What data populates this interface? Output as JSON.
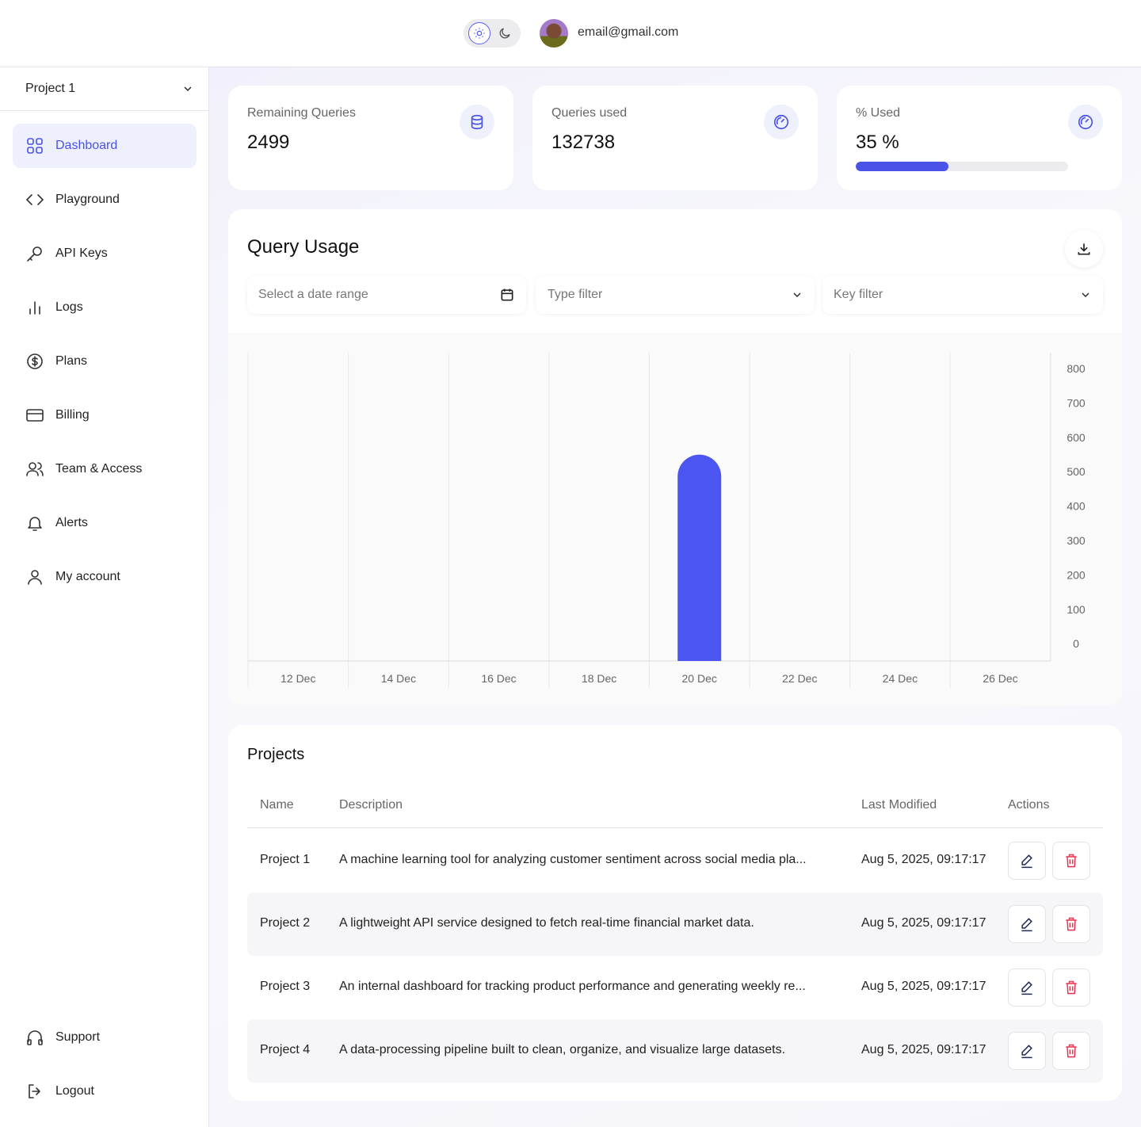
{
  "header": {
    "email": "email@gmail.com",
    "theme": "light"
  },
  "sidebar": {
    "project": "Project 1",
    "items": [
      {
        "label": "Dashboard",
        "icon": "grid-icon"
      },
      {
        "label": "Playground",
        "icon": "code-icon"
      },
      {
        "label": "API Keys",
        "icon": "key-icon"
      },
      {
        "label": "Logs",
        "icon": "bar-chart-icon"
      },
      {
        "label": "Plans",
        "icon": "dollar-circle-icon"
      },
      {
        "label": "Billing",
        "icon": "credit-card-icon"
      },
      {
        "label": "Team & Access",
        "icon": "users-icon"
      },
      {
        "label": "Alerts",
        "icon": "bell-icon"
      },
      {
        "label": "My account",
        "icon": "user-icon"
      }
    ],
    "bottom": [
      {
        "label": "Support",
        "icon": "headphones-icon"
      },
      {
        "label": "Logout",
        "icon": "logout-icon"
      }
    ]
  },
  "stats": [
    {
      "label": "Remaining Queries",
      "value": "2499"
    },
    {
      "label": "Queries used",
      "value": "132738"
    },
    {
      "label": "% Used",
      "value": "35 %",
      "percent": 35
    }
  ],
  "usage": {
    "title": "Query Usage",
    "date_placeholder": "Select a date range",
    "type_placeholder": "Type filter",
    "key_placeholder": "Key filter"
  },
  "chart_data": {
    "type": "bar",
    "categories": [
      "12 Dec",
      "14 Dec",
      "16 Dec",
      "18 Dec",
      "20 Dec",
      "22 Dec",
      "24 Dec",
      "26 Dec"
    ],
    "values": [
      0,
      0,
      0,
      0,
      600,
      0,
      0,
      0
    ],
    "yticks": [
      "800",
      "700",
      "600",
      "500",
      "400",
      "300",
      "200",
      "100",
      "0"
    ],
    "ylim": [
      0,
      800
    ],
    "color": "#4a55f2"
  },
  "projects": {
    "title": "Projects",
    "headers": [
      "Name",
      "Description",
      "Last Modified",
      "Actions"
    ],
    "rows": [
      {
        "name": "Project 1",
        "description": "A machine learning tool for analyzing customer sentiment across social media pla...",
        "modified": "Aug 5, 2025, 09:17:17"
      },
      {
        "name": "Project 2",
        "description": "A lightweight API service designed to fetch real-time financial market data.",
        "modified": "Aug 5, 2025, 09:17:17"
      },
      {
        "name": "Project 3",
        "description": "An internal dashboard for tracking product performance and generating weekly re...",
        "modified": "Aug 5, 2025, 09:17:17"
      },
      {
        "name": "Project 4",
        "description": "A data-processing pipeline built to clean, organize, and visualize large datasets.",
        "modified": "Aug 5, 2025, 09:17:17"
      }
    ]
  }
}
